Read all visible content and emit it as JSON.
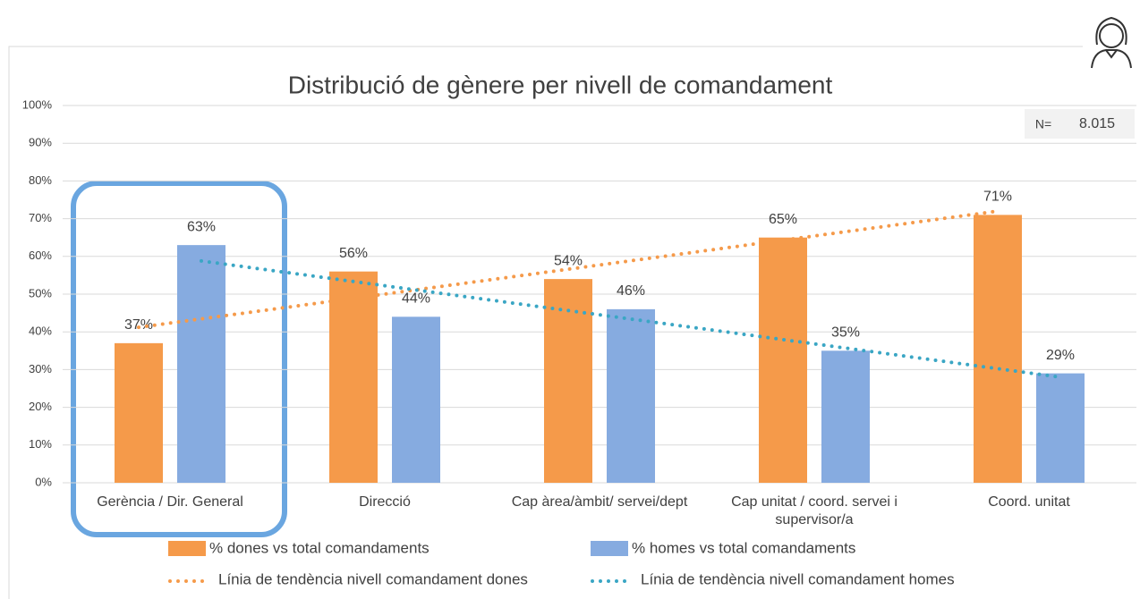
{
  "chart_data": {
    "type": "bar",
    "title": "Distribució de gènere per nivell de comandament",
    "annotations": {
      "n_label": "N=",
      "n_value": "8.015"
    },
    "categories": [
      "Gerència / Dir. General",
      "Direcció",
      "Cap àrea/àmbit/ servei/dept",
      "Cap unitat / coord. servei i supervisor/a",
      "Coord. unitat"
    ],
    "series": [
      {
        "name": "% dones vs total comandaments",
        "color": "#f59a4a",
        "values": [
          37,
          56,
          54,
          65,
          71
        ],
        "value_labels": [
          "37%",
          "56%",
          "54%",
          "65%",
          "71%"
        ]
      },
      {
        "name": "% homes vs total comandaments",
        "color": "#86abe0",
        "values": [
          63,
          44,
          46,
          35,
          29
        ],
        "value_labels": [
          "63%",
          "44%",
          "46%",
          "35%",
          "29%"
        ]
      }
    ],
    "trendlines": [
      {
        "name": "Línia de tendència nivell comandament dones",
        "color": "#f59a4a",
        "values": [
          41.2,
          48.9,
          56.6,
          64.3,
          72
        ]
      },
      {
        "name": "Línia de tendència nivell comandament homes",
        "color": "#3aa6c4",
        "values": [
          58.8,
          51.1,
          43.4,
          35.7,
          28
        ]
      }
    ],
    "ylim": [
      0,
      100
    ],
    "yticks": [
      {
        "value": 0,
        "label": "0%"
      },
      {
        "value": 10,
        "label": "10%"
      },
      {
        "value": 20,
        "label": "20%"
      },
      {
        "value": 30,
        "label": "30%"
      },
      {
        "value": 40,
        "label": "40%"
      },
      {
        "value": 50,
        "label": "50%"
      },
      {
        "value": 60,
        "label": "60%"
      },
      {
        "value": 70,
        "label": "70%"
      },
      {
        "value": 80,
        "label": "80%"
      },
      {
        "value": 90,
        "label": "90%"
      },
      {
        "value": 100,
        "label": "100%"
      }
    ],
    "grid": true
  }
}
